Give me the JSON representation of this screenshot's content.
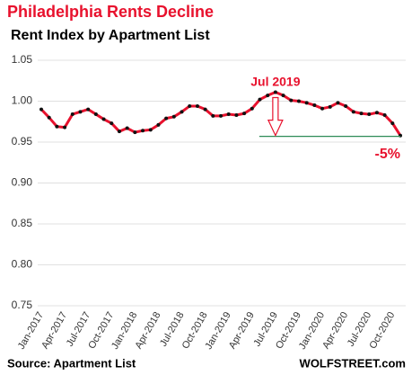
{
  "chart_data": {
    "type": "line",
    "title": "Philadelphia  Rents Decline",
    "subtitle": "Rent Index by Apartment List",
    "source": "Source: Apartment List",
    "brand": "WOLFSTREET.com",
    "annotations": {
      "peak": "Jul 2019",
      "change": "-5%"
    },
    "reference_line": {
      "value": 0.957,
      "color": "#2e8b57"
    },
    "categories": [
      "Jan-2017",
      null,
      null,
      "Apr-2017",
      null,
      null,
      "Jul-2017",
      null,
      null,
      "Oct-2017",
      null,
      null,
      "Jan-2018",
      null,
      null,
      "Apr-2018",
      null,
      null,
      "Jul-2018",
      null,
      null,
      "Oct-2018",
      null,
      null,
      "Jan-2019",
      null,
      null,
      "Apr-2019",
      null,
      null,
      "Jul-2019",
      null,
      null,
      "Oct-2019",
      null,
      null,
      "Jan-2020",
      null,
      null,
      "Apr-2020",
      null,
      null,
      "Jul-2020",
      null,
      null,
      "Oct-2020",
      null
    ],
    "series": [
      {
        "name": "Rent Index",
        "color": "#e8112d",
        "marker_color": "#111111",
        "values": [
          0.99,
          0.98,
          0.969,
          0.968,
          0.984,
          0.987,
          0.99,
          0.984,
          0.978,
          0.973,
          0.963,
          0.967,
          0.962,
          0.964,
          0.965,
          0.971,
          0.979,
          0.981,
          0.987,
          0.994,
          0.994,
          0.99,
          0.982,
          0.982,
          0.984,
          0.983,
          0.985,
          0.991,
          1.002,
          1.007,
          1.011,
          1.007,
          1.001,
          1.0,
          0.998,
          0.995,
          0.991,
          0.993,
          0.998,
          0.994,
          0.987,
          0.985,
          0.984,
          0.986,
          0.983,
          0.973,
          0.958
        ]
      }
    ],
    "ylim": [
      0.75,
      1.05
    ],
    "yticks": [
      0.75,
      {
        "value": 0.8,
        "label": "0.80"
      },
      0.85,
      {
        "value": 0.9,
        "label": "0.90"
      },
      0.95,
      {
        "value": 1.0,
        "label": "1.00"
      },
      1.05
    ],
    "grid": true
  }
}
